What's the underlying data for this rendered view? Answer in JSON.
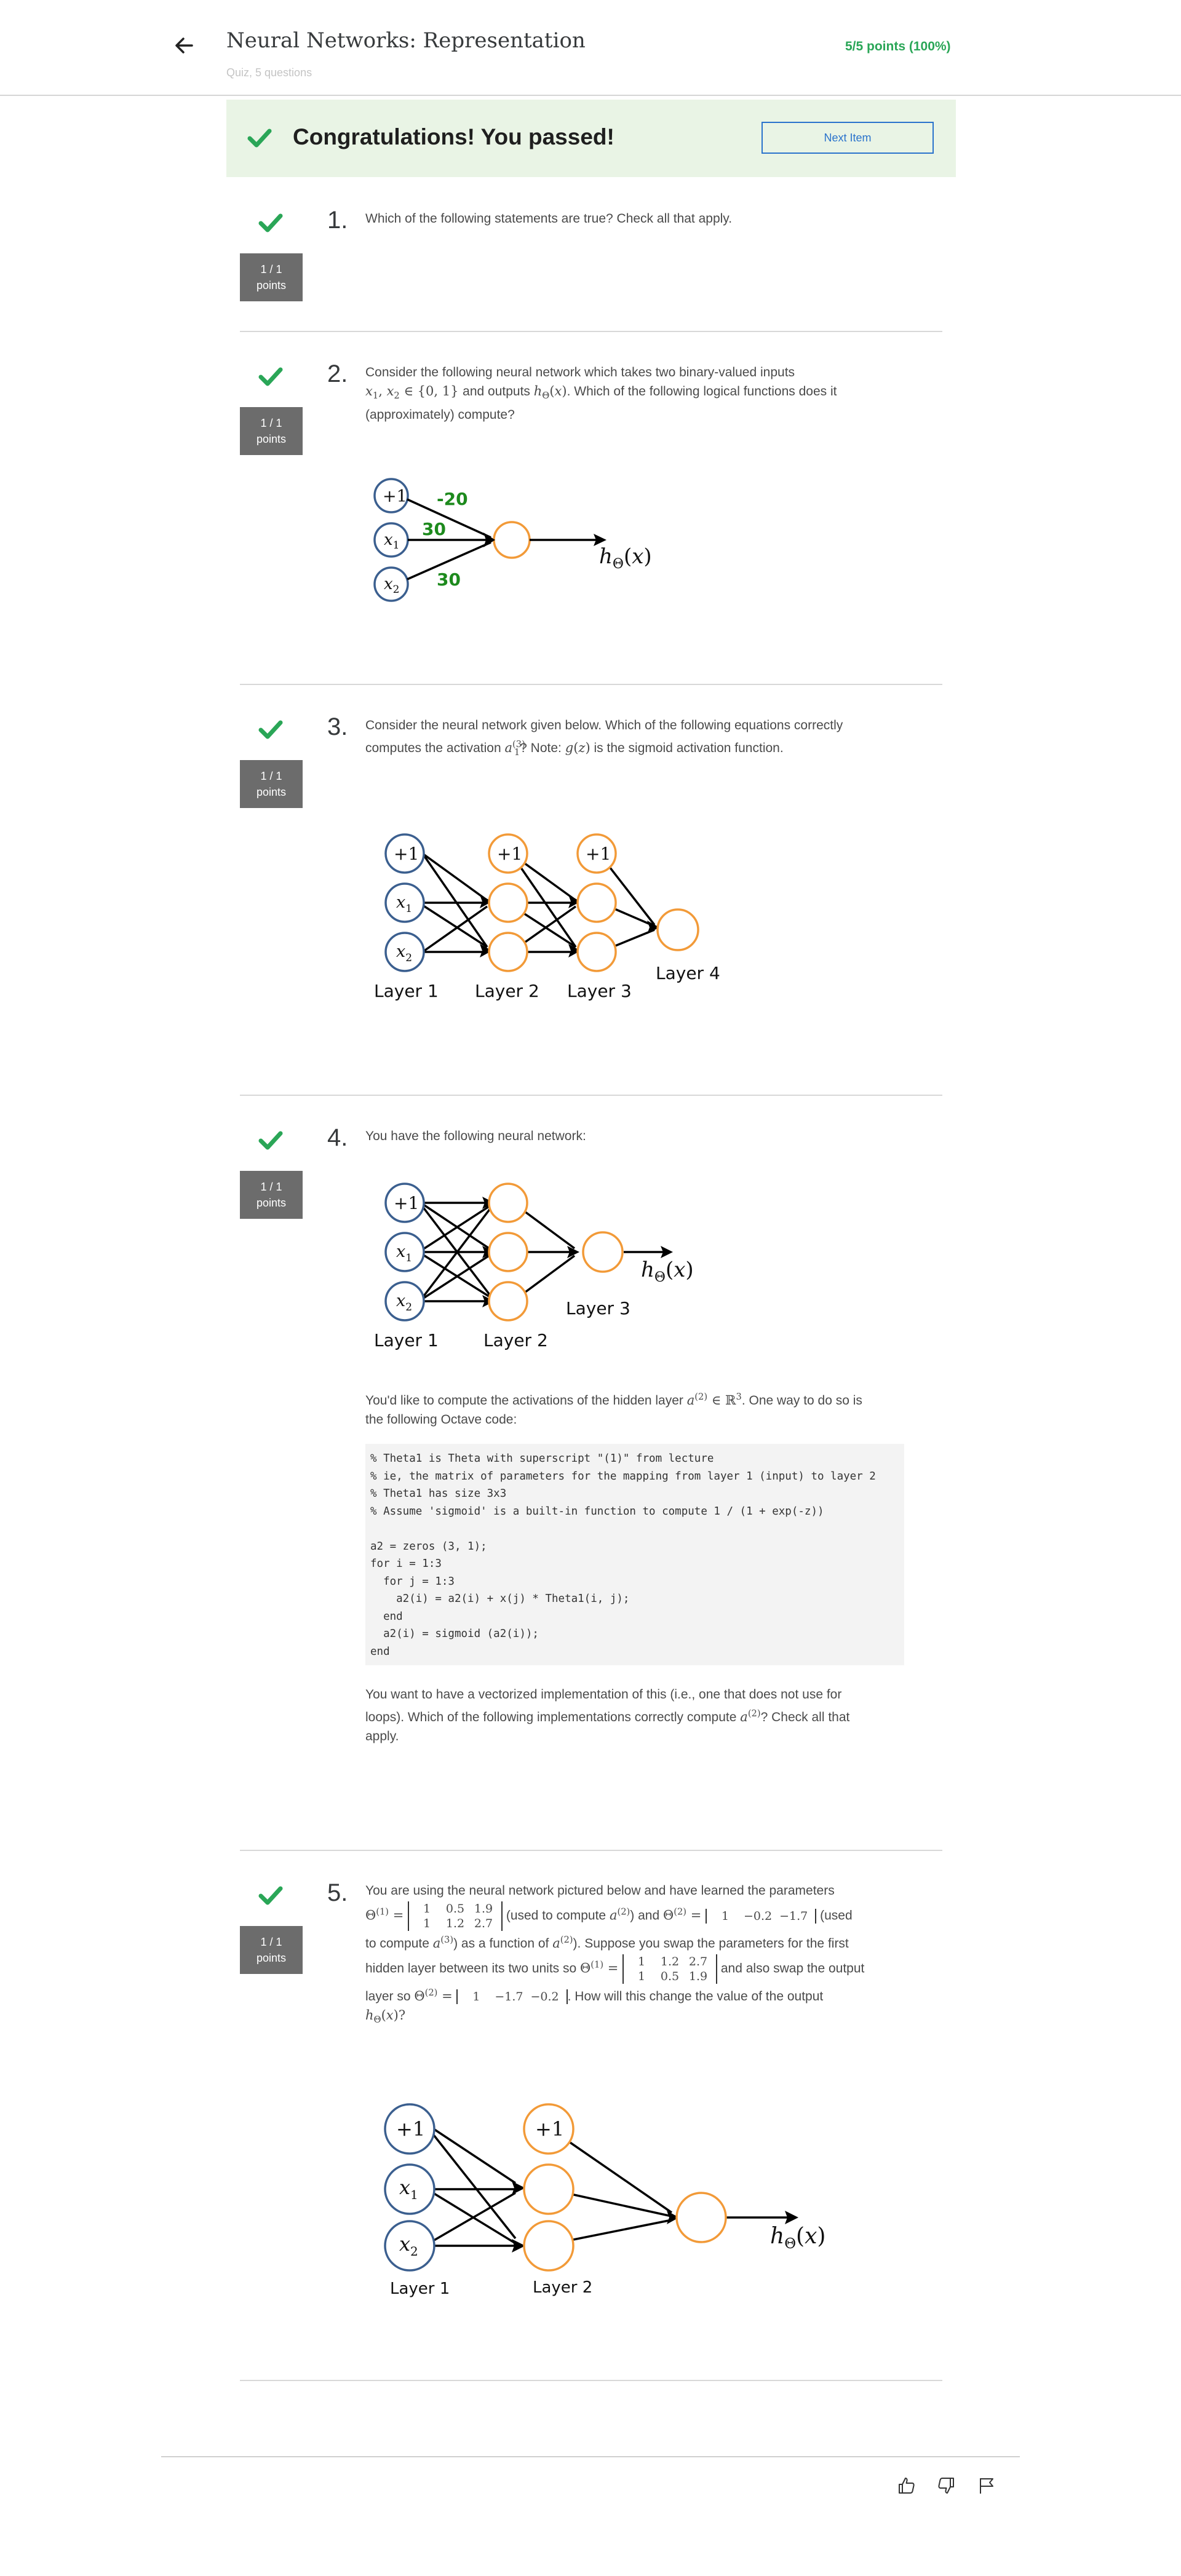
{
  "header": {
    "title": "Neural Networks: Representation",
    "subtitle": "Quiz, 5 questions",
    "score": "5/5 points (100%)"
  },
  "banner": {
    "message": "Congratulations! You passed!",
    "next_label": "Next Item"
  },
  "questions": [
    {
      "number": "1.",
      "points_top": "1 / 1",
      "points_bottom": "points",
      "text": "Which of the following statements are true? Check all that apply."
    },
    {
      "number": "2.",
      "points_top": "1 / 1",
      "points_bottom": "points",
      "line1": "Consider the following neural network which takes two binary-valued inputs",
      "line2_a": "and outputs",
      "line2_b": ". Which of the following logical functions does it",
      "line3": "(approximately) compute?",
      "weights": [
        "-20",
        "30",
        "30"
      ],
      "node_labels": [
        "+1",
        "x",
        "x"
      ],
      "output_label": "h"
    },
    {
      "number": "3.",
      "points_top": "1 / 1",
      "points_bottom": "points",
      "line1": "Consider the neural network given below. Which of the following equations correctly",
      "line2_a": "computes the activation",
      "line2_b": "? Note:",
      "line2_c": "is the sigmoid activation function.",
      "layers": [
        "Layer 1",
        "Layer 2",
        "Layer 3",
        "Layer 4"
      ]
    },
    {
      "number": "4.",
      "points_top": "1 / 1",
      "points_bottom": "points",
      "intro": "You have the following neural network:",
      "layers": [
        "Layer 1",
        "Layer 2",
        "Layer 3"
      ],
      "para1_a": "You'd like to compute the activations of the hidden layer",
      "para1_b": ". One way to do so is",
      "para1_c": "the following Octave code:",
      "code": "% Theta1 is Theta with superscript \"(1)\" from lecture\n% ie, the matrix of parameters for the mapping from layer 1 (input) to layer 2\n% Theta1 has size 3x3\n% Assume 'sigmoid' is a built-in function to compute 1 / (1 + exp(-z))\n\na2 = zeros (3, 1);\nfor i = 1:3\n  for j = 1:3\n    a2(i) = a2(i) + x(j) * Theta1(i, j);\n  end\n  a2(i) = sigmoid (a2(i));\nend",
      "para2_line1": "You want to have a vectorized implementation of this (i.e., one that does not use for",
      "para2_line2_a": "loops). Which of the following implementations correctly compute",
      "para2_line2_b": "? Check all that",
      "para2_line3": "apply."
    },
    {
      "number": "5.",
      "points_top": "1 / 1",
      "points_bottom": "points",
      "line1": "You are using the neural network pictured below and have learned the parameters",
      "t_used_a2": "(used to compute",
      "t_and": ") and",
      "t_used": "(used",
      "t_to_compute": "to compute",
      "t_as_func": ") as a function of",
      "t_suppose": "). Suppose you swap the parameters for the first",
      "t_hidden": "hidden layer between its two units so",
      "t_also": "and also swap the output",
      "t_layer_so": "layer so",
      "t_how": ". How will this change the value of the output",
      "theta1": [
        [
          "1",
          "0.5",
          "1.9"
        ],
        [
          "1",
          "1.2",
          "2.7"
        ]
      ],
      "theta2": [
        "1",
        "−0.2",
        "−1.7"
      ],
      "theta1_swapped": [
        [
          "1",
          "1.2",
          "2.7"
        ],
        [
          "1",
          "0.5",
          "1.9"
        ]
      ],
      "theta2_swapped": [
        "1",
        "−1.7",
        "−0.2"
      ],
      "layers": [
        "Layer 1",
        "Layer 2"
      ]
    }
  ],
  "footer": {
    "icons": [
      "thumbs-up-icon",
      "thumbs-down-icon",
      "flag-icon"
    ]
  },
  "colors": {
    "accent_green": "#2aa657",
    "banner_bg": "#e9f4e5",
    "link_blue": "#2a73cc",
    "input_node": "#3b5f8f",
    "hidden_node": "#f29a38",
    "weight_green": "#1d8a1d"
  }
}
